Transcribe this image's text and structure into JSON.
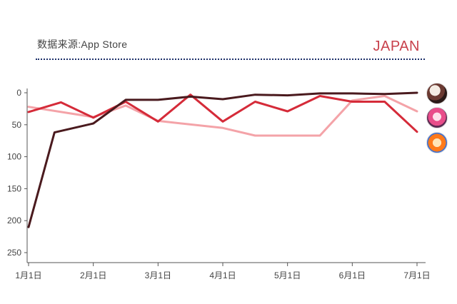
{
  "header": {
    "source": "数据来源:App Store",
    "region": "JAPAN",
    "accent": "#c8414c"
  },
  "chart_data": {
    "type": "line",
    "title": "",
    "xlabel": "",
    "ylabel": "",
    "y_inverted": true,
    "ylim": [
      0,
      250
    ],
    "y_ticks": [
      0,
      50,
      100,
      150,
      200,
      250
    ],
    "xlim": [
      0,
      6
    ],
    "x_ticks": [
      {
        "x": 0,
        "label": "1月1日"
      },
      {
        "x": 1,
        "label": "2月1日"
      },
      {
        "x": 2,
        "label": "3月1日"
      },
      {
        "x": 3,
        "label": "4月1日"
      },
      {
        "x": 4,
        "label": "5月1日"
      },
      {
        "x": 5,
        "label": "6月1日"
      },
      {
        "x": 6,
        "label": "7月1日"
      }
    ],
    "grid": false,
    "legend": "none (app icons at right end)",
    "series": [
      {
        "color": "#f4a3a8",
        "icon": "pink-hair-anime-girl-icon",
        "x": [
          0,
          1,
          1.5,
          2,
          3,
          3.5,
          4,
          4.5,
          5,
          5.5,
          6
        ],
        "y": [
          22,
          38,
          20,
          44,
          55,
          67,
          67,
          67,
          12,
          5,
          29
        ]
      },
      {
        "color": "#d52b39",
        "icon": "orange-hair-anime-boy-icon",
        "x": [
          0,
          0.5,
          1,
          1.5,
          2,
          2.5,
          3,
          3.5,
          4,
          4.5,
          5,
          5.5,
          6
        ],
        "y": [
          30,
          15,
          39,
          14,
          45,
          3,
          45,
          14,
          29,
          5,
          14,
          14,
          61
        ]
      },
      {
        "color": "#4a1a1e",
        "icon": "dark-hair-anime-character-icon",
        "x": [
          0,
          0.4,
          1,
          1.5,
          2,
          2.5,
          3,
          3.5,
          4,
          4.5,
          5,
          5.5,
          6
        ],
        "y": [
          210,
          62,
          48,
          11,
          11,
          6,
          10,
          3,
          4,
          1,
          1,
          2,
          0
        ]
      }
    ]
  }
}
